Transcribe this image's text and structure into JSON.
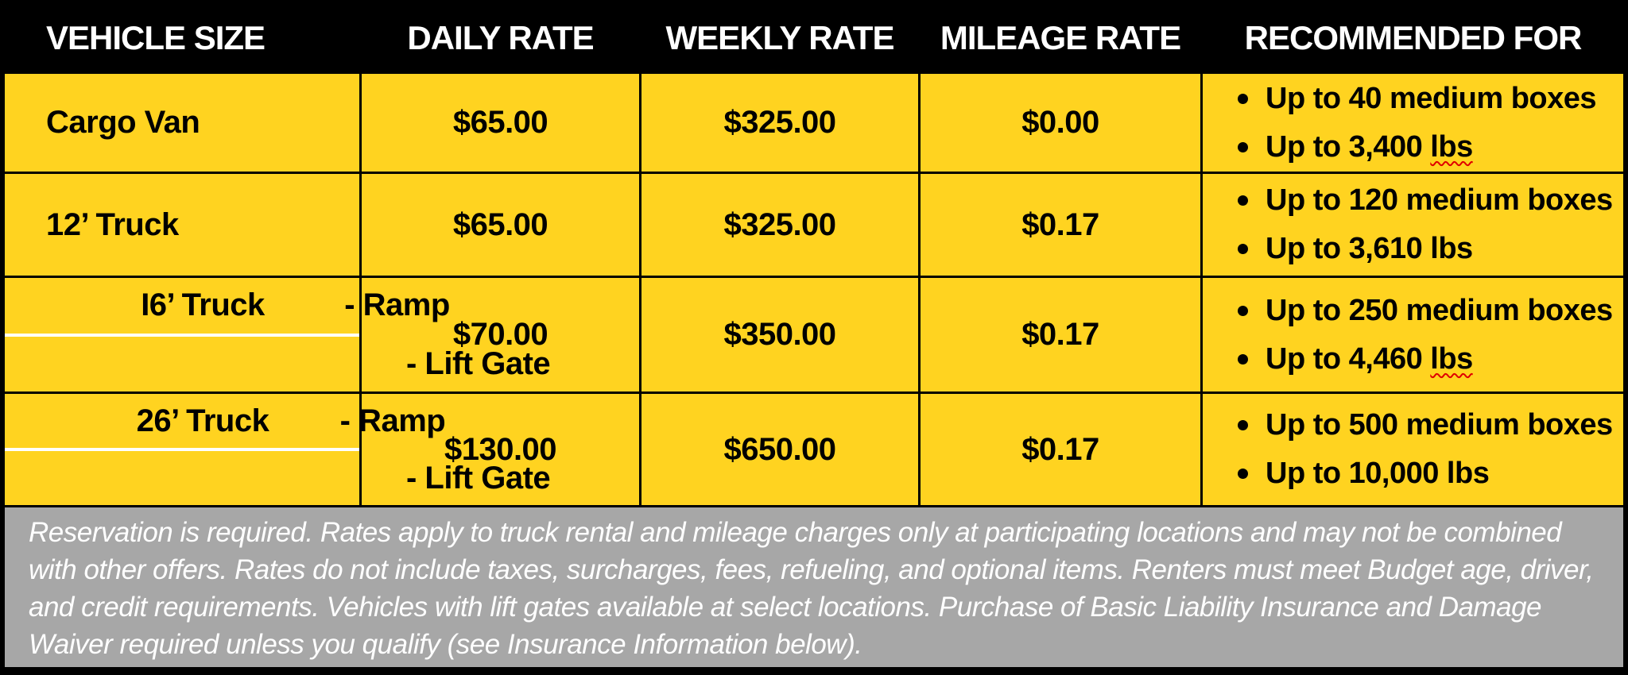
{
  "colors": {
    "table_yellow": "#FFD320",
    "header_black": "#000000",
    "footnote_gray": "#A7A7A7",
    "spellcheck_red": "#E00000"
  },
  "table": {
    "columns": [
      "VEHICLE SIZE",
      "DAILY RATE",
      "WEEKLY RATE",
      "MILEAGE RATE",
      "RECOMMENDED FOR"
    ],
    "rows": [
      {
        "vehicle": "Cargo Van",
        "options": [],
        "daily_rate": "$65.00",
        "weekly_rate": "$325.00",
        "mileage_rate": "$0.00",
        "recommended": [
          {
            "pre": "Up to 40 medium boxes",
            "misspelled": ""
          },
          {
            "pre": "Up to 3,400 ",
            "misspelled": "lbs"
          }
        ]
      },
      {
        "vehicle": "12’ Truck",
        "options": [],
        "daily_rate": "$65.00",
        "weekly_rate": "$325.00",
        "mileage_rate": "$0.17",
        "recommended": [
          {
            "pre": "Up to 120 medium boxes",
            "misspelled": ""
          },
          {
            "pre": "Up to 3,610 lbs",
            "misspelled": ""
          }
        ]
      },
      {
        "vehicle": "I6’ Truck",
        "options": [
          "- Ramp",
          "- Lift Gate"
        ],
        "daily_rate": "$70.00",
        "weekly_rate": "$350.00",
        "mileage_rate": "$0.17",
        "recommended": [
          {
            "pre": "Up to 250 medium boxes",
            "misspelled": ""
          },
          {
            "pre": "Up to 4,460 ",
            "misspelled": "lbs"
          }
        ]
      },
      {
        "vehicle": "26’ Truck",
        "options": [
          "- Ramp",
          "- Lift Gate"
        ],
        "daily_rate": "$130.00",
        "weekly_rate": "$650.00",
        "mileage_rate": "$0.17",
        "recommended": [
          {
            "pre": "Up to 500 medium boxes",
            "misspelled": ""
          },
          {
            "pre": "Up to 10,000 lbs",
            "misspelled": ""
          }
        ]
      }
    ]
  },
  "footnote": "Reservation is required. Rates apply to truck rental and mileage charges only at participating locations and may not be combined with other offers. Rates do not include taxes, surcharges, fees, refueling, and optional items. Renters must meet Budget age, driver, and credit requirements. Vehicles with lift gates available at select locations. Purchase of Basic Liability Insurance and Damage Waiver required unless you qualify (see Insurance Information below)."
}
